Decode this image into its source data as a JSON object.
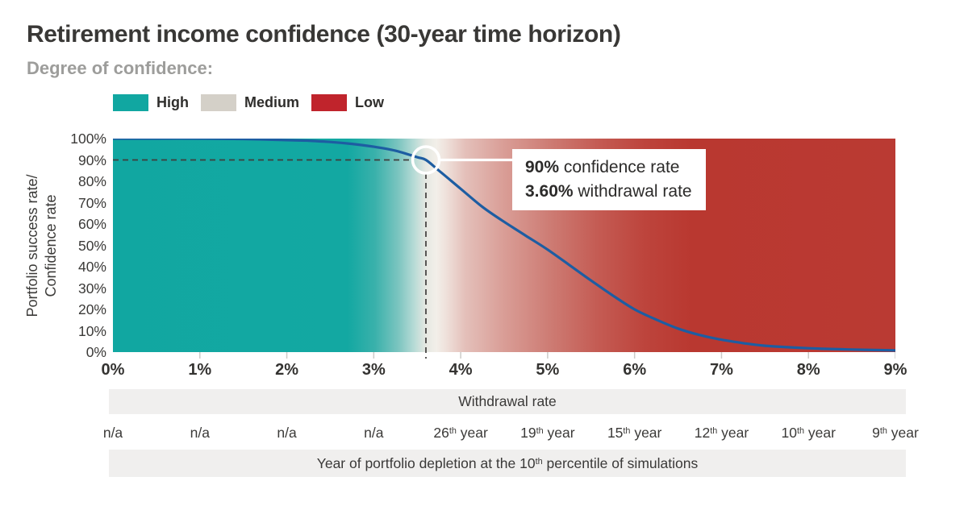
{
  "title": "Retirement income confidence (30-year time horizon)",
  "subtitle": "Degree of confidence:",
  "legend": {
    "items": [
      {
        "label": "High",
        "color": "#11a7a1"
      },
      {
        "label": "Medium",
        "color": "#d4d0c8"
      },
      {
        "label": "Low",
        "color": "#c0242c"
      }
    ]
  },
  "chart_data": {
    "type": "line",
    "title": "Retirement income confidence (30-year time horizon)",
    "xlabel": "Withdrawal rate",
    "ylabel_lines": [
      "Portfolio success rate/",
      "Confidence rate"
    ],
    "xlim": [
      0,
      9
    ],
    "ylim": [
      0,
      100
    ],
    "grid": false,
    "xticks": [
      "0%",
      "1%",
      "2%",
      "3%",
      "4%",
      "5%",
      "6%",
      "7%",
      "8%",
      "9%"
    ],
    "yticks": [
      "0%",
      "10%",
      "20%",
      "30%",
      "40%",
      "50%",
      "60%",
      "70%",
      "80%",
      "90%",
      "100%"
    ],
    "line_color": "#1d5da2",
    "dash_color": "#3f3e3c",
    "tick_color": "#cccbc9",
    "series": [
      {
        "name": "Portfolio success rate / Confidence rate",
        "x": [
          0,
          0.5,
          1,
          1.5,
          2,
          2.25,
          2.5,
          2.75,
          3,
          3.25,
          3.5,
          3.6,
          3.75,
          4,
          4.25,
          4.5,
          4.75,
          5,
          5.25,
          5.5,
          5.75,
          6,
          6.25,
          6.5,
          6.75,
          7,
          7.25,
          7.5,
          8,
          8.5,
          9
        ],
        "values": [
          100,
          100,
          100,
          99.8,
          99.3,
          99,
          98.4,
          97.5,
          96.2,
          94.3,
          91.3,
          90,
          85,
          76.5,
          68,
          61,
          54.5,
          48,
          40.8,
          33.5,
          26.5,
          20,
          15.2,
          11,
          8,
          5.8,
          4.2,
          3,
          1.8,
          1.2,
          0.8
        ]
      }
    ],
    "background_gradient": [
      {
        "pos": 0.0,
        "color": "#11a7a1"
      },
      {
        "pos": 0.3,
        "color": "#13a8a2"
      },
      {
        "pos": 0.335,
        "color": "#3ab1ab"
      },
      {
        "pos": 0.365,
        "color": "#7cc5c0"
      },
      {
        "pos": 0.385,
        "color": "#b7dbd6"
      },
      {
        "pos": 0.4,
        "color": "#e6e8e2"
      },
      {
        "pos": 0.413,
        "color": "#f2efe9"
      },
      {
        "pos": 0.425,
        "color": "#efe2dc"
      },
      {
        "pos": 0.45,
        "color": "#e4c0ba"
      },
      {
        "pos": 0.5,
        "color": "#d99d96"
      },
      {
        "pos": 0.56,
        "color": "#cd7b73"
      },
      {
        "pos": 0.62,
        "color": "#c45b53"
      },
      {
        "pos": 0.68,
        "color": "#bd443c"
      },
      {
        "pos": 0.74,
        "color": "#b93830"
      },
      {
        "pos": 1.0,
        "color": "#ba3a33"
      }
    ],
    "annotation": {
      "x": 3.6,
      "y": 90,
      "line1_bold": "90%",
      "line1_rest": " confidence rate",
      "line2_bold": "3.60%",
      "line2_rest": " withdrawal rate"
    }
  },
  "bottom": {
    "withdrawal_label": "Withdrawal rate",
    "depletion_pre": "Year of portfolio depletion at the 10",
    "depletion_sup": "th",
    "depletion_post": " percentile of simulations"
  },
  "depletion": {
    "labels": [
      {
        "num": "n/a",
        "sup": "",
        "rest": ""
      },
      {
        "num": "n/a",
        "sup": "",
        "rest": ""
      },
      {
        "num": "n/a",
        "sup": "",
        "rest": ""
      },
      {
        "num": "n/a",
        "sup": "",
        "rest": ""
      },
      {
        "num": "26",
        "sup": "th",
        "rest": " year"
      },
      {
        "num": "19",
        "sup": "th",
        "rest": " year"
      },
      {
        "num": "15",
        "sup": "th",
        "rest": " year"
      },
      {
        "num": "12",
        "sup": "th",
        "rest": " year"
      },
      {
        "num": "10",
        "sup": "th",
        "rest": " year"
      },
      {
        "num": "9",
        "sup": "th",
        "rest": " year"
      }
    ]
  }
}
